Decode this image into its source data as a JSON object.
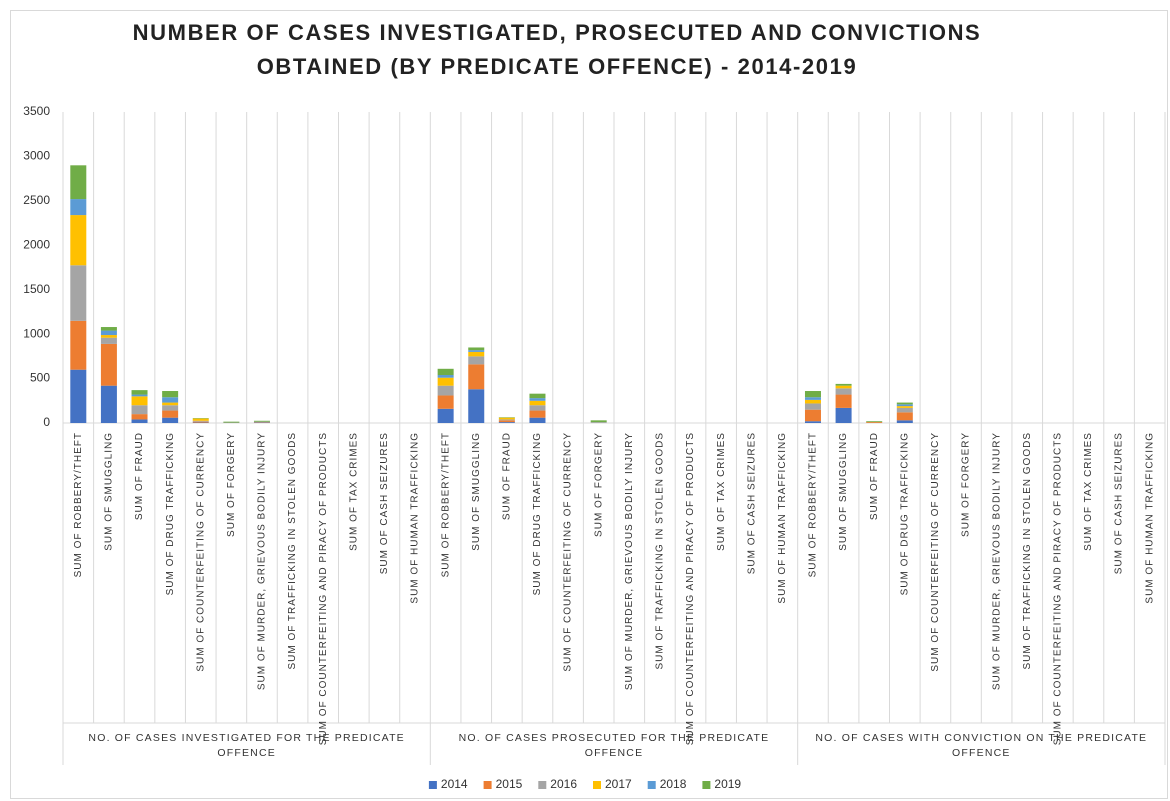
{
  "chart_data": {
    "type": "stacked_bar",
    "title": "NUMBER OF CASES INVESTIGATED, PROSECUTED AND CONVICTIONS OBTAINED (BY PREDICATE OFFENCE) - 2014-2019",
    "groups": [
      "NO. OF CASES INVESTIGATED FOR THE PREDICATE OFFENCE",
      "NO. OF CASES PROSECUTED FOR THE PREDICATE OFFENCE",
      "NO. OF CASES WITH CONVICTION ON THE PREDICATE OFFENCE"
    ],
    "categories": [
      "SUM OF ROBBERY/THEFT",
      "SUM OF SMUGGLING",
      "SUM OF FRAUD",
      "SUM OF DRUG TRAFFICKING",
      "SUM OF COUNTERFEITING OF CURRENCY",
      "SUM OF FORGERY",
      "SUM OF MURDER, GRIEVOUS BODILY INJURY",
      "SUM OF TRAFFICKING IN STOLEN GOODS",
      "SUM OF COUNTERFEITING AND PIRACY OF PRODUCTS",
      "SUM OF TAX CRIMES",
      "SUM OF CASH SEIZURES",
      "SUM OF HUMAN TRAFFICKING",
      "SUM OF ROBBERY/THEFT",
      "SUM OF SMUGGLING",
      "SUM OF FRAUD",
      "SUM OF DRUG TRAFFICKING",
      "SUM OF COUNTERFEITING OF CURRENCY",
      "SUM OF FORGERY",
      "SUM OF MURDER, GRIEVOUS BODILY INJURY",
      "SUM OF TRAFFICKING IN STOLEN GOODS",
      "SUM OF COUNTERFEITING AND PIRACY OF PRODUCTS",
      "SUM OF TAX CRIMES",
      "SUM OF CASH SEIZURES",
      "SUM OF HUMAN TRAFFICKING",
      "SUM OF ROBBERY/THEFT",
      "SUM OF SMUGGLING",
      "SUM OF FRAUD",
      "SUM OF DRUG TRAFFICKING",
      "SUM OF COUNTERFEITING OF CURRENCY",
      "SUM OF FORGERY",
      "SUM OF MURDER, GRIEVOUS BODILY INJURY",
      "SUM OF TRAFFICKING IN STOLEN GOODS",
      "SUM OF COUNTERFEITING AND PIRACY OF PRODUCTS",
      "SUM OF TAX CRIMES",
      "SUM OF CASH SEIZURES",
      "SUM OF HUMAN TRAFFICKING"
    ],
    "series": [
      {
        "name": "2014",
        "color": "#4472c4",
        "values": [
          600,
          420,
          40,
          60,
          5,
          0,
          5,
          0,
          0,
          0,
          0,
          0,
          160,
          380,
          10,
          60,
          0,
          0,
          0,
          0,
          0,
          0,
          0,
          0,
          20,
          170,
          0,
          30,
          0,
          0,
          0,
          0,
          0,
          0,
          0,
          0
        ]
      },
      {
        "name": "2015",
        "color": "#ed7d31",
        "values": [
          550,
          470,
          60,
          80,
          10,
          0,
          5,
          0,
          0,
          0,
          0,
          0,
          150,
          280,
          20,
          80,
          0,
          0,
          0,
          0,
          0,
          0,
          0,
          0,
          130,
          150,
          10,
          90,
          0,
          0,
          0,
          0,
          0,
          0,
          0,
          0
        ]
      },
      {
        "name": "2016",
        "color": "#a5a5a5",
        "values": [
          625,
          70,
          100,
          60,
          10,
          5,
          5,
          0,
          0,
          0,
          0,
          0,
          110,
          90,
          10,
          60,
          0,
          10,
          0,
          0,
          0,
          0,
          0,
          0,
          70,
          70,
          0,
          50,
          0,
          0,
          0,
          0,
          0,
          0,
          0,
          0
        ]
      },
      {
        "name": "2017",
        "color": "#ffc000",
        "values": [
          565,
          30,
          100,
          30,
          25,
          0,
          0,
          0,
          0,
          0,
          0,
          0,
          90,
          50,
          20,
          50,
          0,
          0,
          0,
          0,
          0,
          0,
          0,
          0,
          40,
          30,
          0,
          20,
          0,
          0,
          0,
          0,
          0,
          0,
          0,
          0
        ]
      },
      {
        "name": "2018",
        "color": "#5b9bd5",
        "values": [
          180,
          50,
          20,
          60,
          0,
          0,
          0,
          0,
          0,
          0,
          0,
          0,
          30,
          20,
          0,
          30,
          0,
          0,
          0,
          0,
          0,
          0,
          0,
          0,
          30,
          0,
          0,
          20,
          0,
          0,
          0,
          0,
          0,
          0,
          0,
          0
        ]
      },
      {
        "name": "2019",
        "color": "#70ad47",
        "values": [
          380,
          40,
          50,
          70,
          5,
          10,
          10,
          0,
          0,
          0,
          0,
          0,
          70,
          30,
          5,
          50,
          0,
          20,
          0,
          0,
          0,
          0,
          0,
          0,
          70,
          20,
          10,
          20,
          0,
          0,
          0,
          0,
          0,
          0,
          0,
          0
        ]
      }
    ],
    "ylim": [
      0,
      3500
    ],
    "yticks": [
      0,
      500,
      1000,
      1500,
      2000,
      2500,
      3000,
      3500
    ]
  }
}
